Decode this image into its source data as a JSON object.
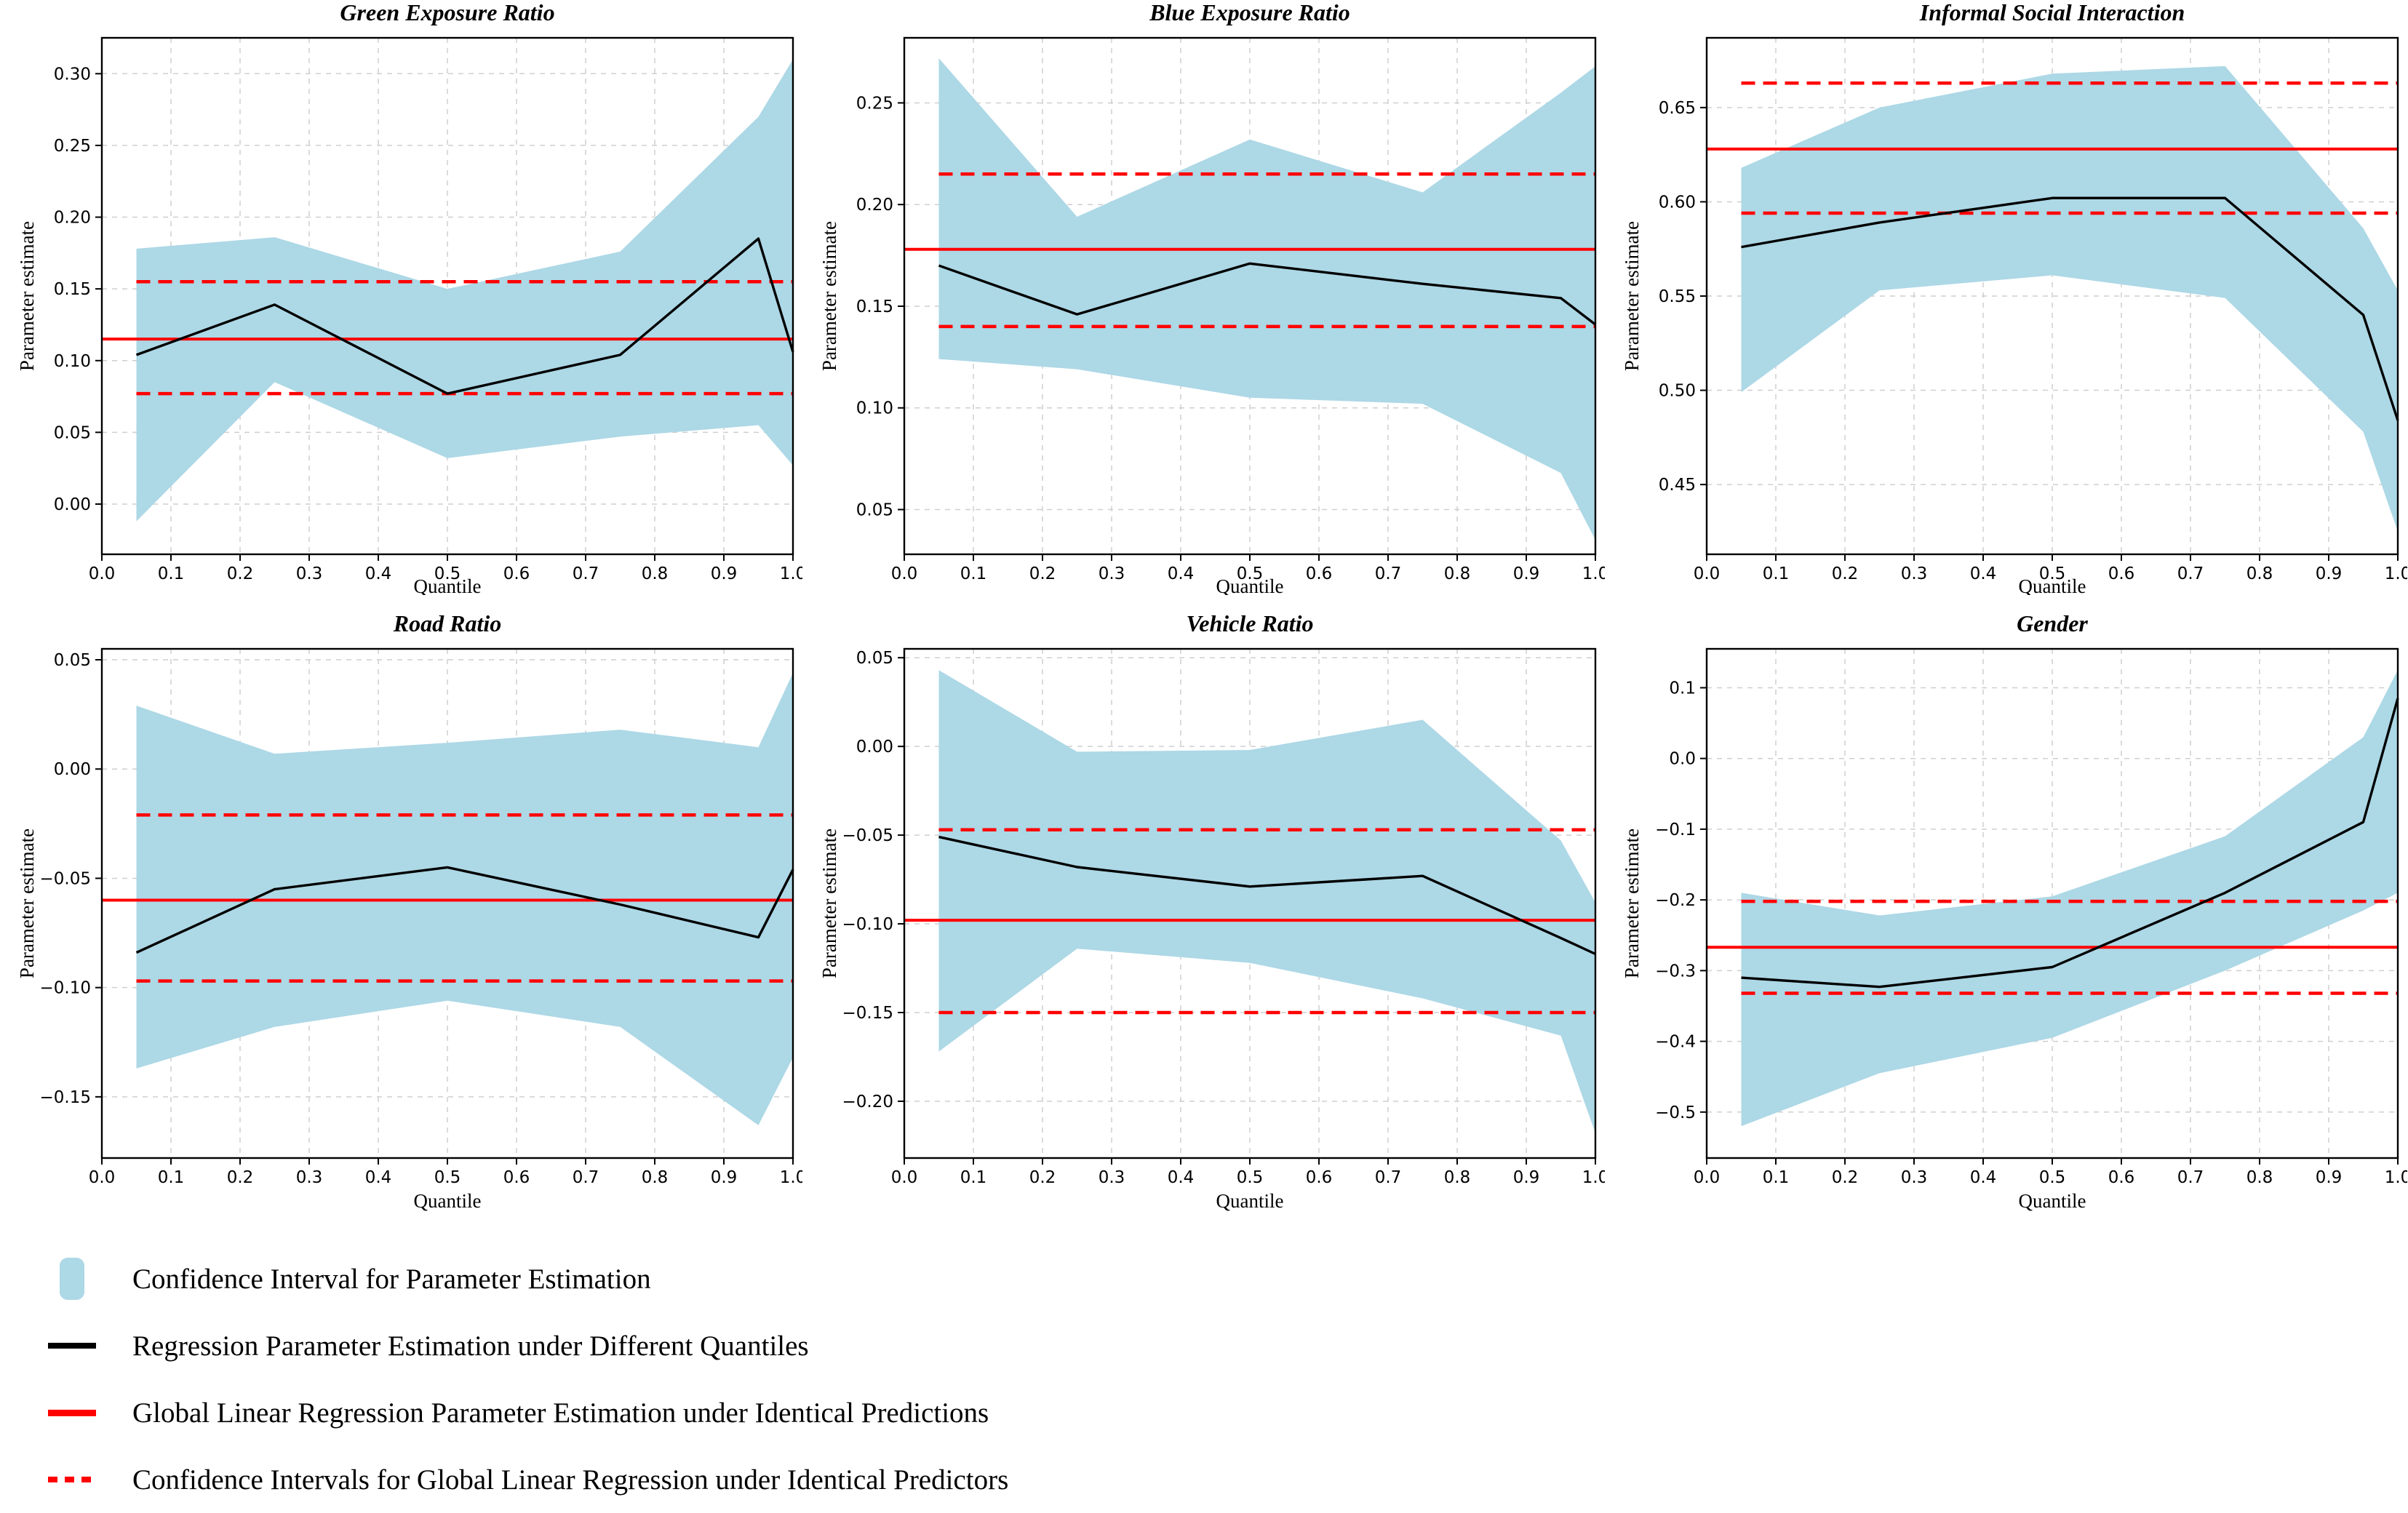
{
  "colors": {
    "band": "#ADD8E6",
    "estimate_line": "#000000",
    "global_line": "#FF0000",
    "global_ci_line": "#FF0000",
    "grid": "#CFCFCF",
    "axis": "#000000",
    "background": "#FFFFFF"
  },
  "axes": {
    "xlabel": "Quantile",
    "ylabel": "Parameter estimate",
    "xlim": [
      0.0,
      1.0
    ],
    "xticks": [
      0.0,
      0.1,
      0.2,
      0.3,
      0.4,
      0.5,
      0.6,
      0.7,
      0.8,
      0.9,
      1.0
    ],
    "grid": "dashed"
  },
  "chart_data": [
    {
      "type": "line",
      "title": "Green Exposure Ratio",
      "xlabel": "Quantile",
      "ylabel": "Parameter estimate",
      "x": [
        0.05,
        0.25,
        0.5,
        0.75,
        0.95,
        1.0
      ],
      "series": [
        {
          "name": "Regression Parameter Estimation under Different Quantiles",
          "values": [
            0.104,
            0.139,
            0.077,
            0.104,
            0.185,
            0.106
          ]
        },
        {
          "name": "Confidence Interval upper",
          "values": [
            0.178,
            0.186,
            0.15,
            0.176,
            0.27,
            0.31
          ]
        },
        {
          "name": "Confidence Interval lower",
          "values": [
            -0.012,
            0.085,
            0.032,
            0.047,
            0.055,
            0.027
          ]
        }
      ],
      "global_estimate": 0.115,
      "global_ci_upper": 0.155,
      "global_ci_lower": 0.077,
      "ylim": [
        -0.035,
        0.325
      ],
      "yticks": [
        0.0,
        0.05,
        0.1,
        0.15,
        0.2,
        0.25,
        0.3
      ],
      "ytick_decimals": 2
    },
    {
      "type": "line",
      "title": "Blue Exposure Ratio",
      "xlabel": "Quantile",
      "ylabel": "Parameter estimate",
      "x": [
        0.05,
        0.25,
        0.5,
        0.75,
        0.95,
        1.0
      ],
      "series": [
        {
          "name": "Regression Parameter Estimation under Different Quantiles",
          "values": [
            0.17,
            0.146,
            0.171,
            0.161,
            0.154,
            0.141
          ]
        },
        {
          "name": "Confidence Interval upper",
          "values": [
            0.272,
            0.194,
            0.232,
            0.206,
            0.255,
            0.268
          ]
        },
        {
          "name": "Confidence Interval lower",
          "values": [
            0.124,
            0.119,
            0.105,
            0.102,
            0.068,
            0.035
          ]
        }
      ],
      "global_estimate": 0.178,
      "global_ci_upper": 0.215,
      "global_ci_lower": 0.14,
      "ylim": [
        0.028,
        0.282
      ],
      "yticks": [
        0.05,
        0.1,
        0.15,
        0.2,
        0.25
      ],
      "ytick_decimals": 2
    },
    {
      "type": "line",
      "title": "Informal Social Interaction",
      "xlabel": "Quantile",
      "ylabel": "Parameter estimate",
      "x": [
        0.05,
        0.25,
        0.5,
        0.75,
        0.95,
        1.0
      ],
      "series": [
        {
          "name": "Regression Parameter Estimation under Different Quantiles",
          "values": [
            0.576,
            0.589,
            0.602,
            0.602,
            0.54,
            0.484
          ]
        },
        {
          "name": "Confidence Interval upper",
          "values": [
            0.618,
            0.65,
            0.668,
            0.672,
            0.586,
            0.553
          ]
        },
        {
          "name": "Confidence Interval lower",
          "values": [
            0.499,
            0.553,
            0.561,
            0.549,
            0.478,
            0.425
          ]
        }
      ],
      "global_estimate": 0.628,
      "global_ci_upper": 0.663,
      "global_ci_lower": 0.594,
      "ylim": [
        0.413,
        0.687
      ],
      "yticks": [
        0.45,
        0.5,
        0.55,
        0.6,
        0.65
      ],
      "ytick_decimals": 2
    },
    {
      "type": "line",
      "title": "Road Ratio",
      "xlabel": "Quantile",
      "ylabel": "Parameter estimate",
      "x": [
        0.05,
        0.25,
        0.5,
        0.75,
        0.95,
        1.0
      ],
      "series": [
        {
          "name": "Regression Parameter Estimation under Different Quantiles",
          "values": [
            -0.084,
            -0.055,
            -0.045,
            -0.062,
            -0.077,
            -0.046
          ]
        },
        {
          "name": "Confidence Interval upper",
          "values": [
            0.029,
            0.007,
            0.012,
            0.018,
            0.01,
            0.044
          ]
        },
        {
          "name": "Confidence Interval lower",
          "values": [
            -0.137,
            -0.118,
            -0.106,
            -0.118,
            -0.163,
            -0.132
          ]
        }
      ],
      "global_estimate": -0.06,
      "global_ci_upper": -0.021,
      "global_ci_lower": -0.097,
      "ylim": [
        -0.178,
        0.055
      ],
      "yticks": [
        0.05,
        0.0,
        -0.05,
        -0.1,
        -0.15
      ],
      "ytick_decimals": 2
    },
    {
      "type": "line",
      "title": "Vehicle Ratio",
      "xlabel": "Quantile",
      "ylabel": "Parameter estimate",
      "x": [
        0.05,
        0.25,
        0.5,
        0.75,
        0.95,
        1.0
      ],
      "series": [
        {
          "name": "Regression Parameter Estimation under Different Quantiles",
          "values": [
            -0.051,
            -0.068,
            -0.079,
            -0.073,
            -0.108,
            -0.117
          ]
        },
        {
          "name": "Confidence Interval upper",
          "values": [
            0.043,
            -0.003,
            -0.002,
            0.015,
            -0.053,
            -0.088
          ]
        },
        {
          "name": "Confidence Interval lower",
          "values": [
            -0.172,
            -0.114,
            -0.122,
            -0.142,
            -0.163,
            -0.218
          ]
        }
      ],
      "global_estimate": -0.098,
      "global_ci_upper": -0.047,
      "global_ci_lower": -0.15,
      "ylim": [
        -0.232,
        0.055
      ],
      "yticks": [
        0.05,
        0.0,
        -0.05,
        -0.1,
        -0.15,
        -0.2
      ],
      "ytick_decimals": 2
    },
    {
      "type": "line",
      "title": "Gender",
      "xlabel": "Quantile",
      "ylabel": "Parameter estimate",
      "x": [
        0.05,
        0.25,
        0.5,
        0.75,
        0.95,
        1.0
      ],
      "series": [
        {
          "name": "Regression Parameter Estimation under Different Quantiles",
          "values": [
            -0.31,
            -0.323,
            -0.295,
            -0.19,
            -0.09,
            0.085
          ]
        },
        {
          "name": "Confidence Interval upper",
          "values": [
            -0.19,
            -0.222,
            -0.195,
            -0.11,
            0.03,
            0.125
          ]
        },
        {
          "name": "Confidence Interval lower",
          "values": [
            -0.52,
            -0.445,
            -0.395,
            -0.3,
            -0.215,
            -0.19
          ]
        }
      ],
      "global_estimate": -0.267,
      "global_ci_upper": -0.202,
      "global_ci_lower": -0.332,
      "ylim": [
        -0.565,
        0.155
      ],
      "yticks": [
        0.1,
        0.0,
        -0.1,
        -0.2,
        -0.3,
        -0.4,
        -0.5
      ],
      "ytick_decimals": 1
    }
  ],
  "legend": {
    "items": [
      {
        "label": "Confidence Interval for Parameter Estimation",
        "swatch": "patch"
      },
      {
        "label": "Regression Parameter Estimation under Different Quantiles",
        "swatch": "solid-black-line"
      },
      {
        "label": "Global Linear Regression Parameter Estimation under Identical Predictions",
        "swatch": "solid-red-line"
      },
      {
        "label": "Confidence Intervals for Global Linear Regression under Identical Predictors",
        "swatch": "dashed-red-line"
      }
    ]
  }
}
